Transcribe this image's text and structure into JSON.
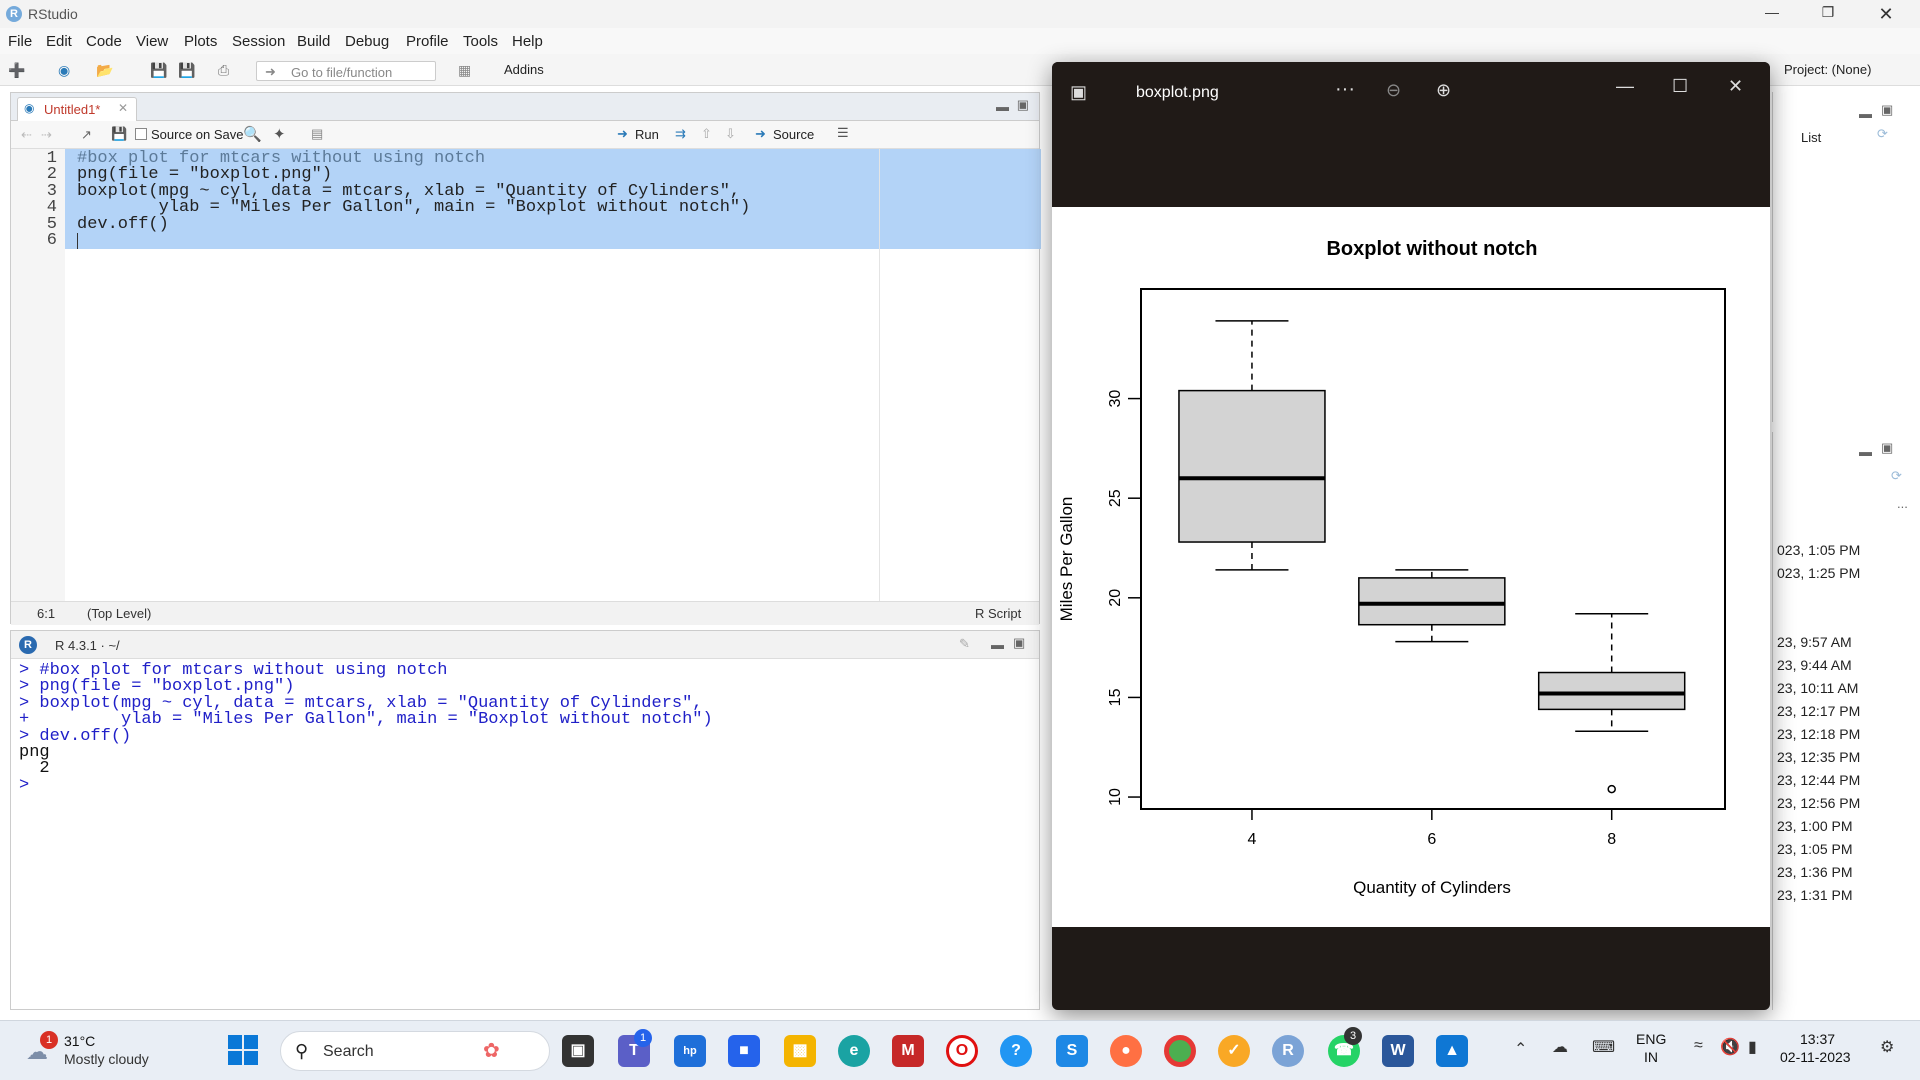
{
  "window": {
    "title": "RStudio"
  },
  "menu": [
    "File",
    "Edit",
    "Code",
    "View",
    "Plots",
    "Session",
    "Build",
    "Debug",
    "Profile",
    "Tools",
    "Help"
  ],
  "toolbar": {
    "goto_placeholder": "Go to file/function",
    "addins_label": "Addins",
    "project_label": "Project: (None)"
  },
  "editor": {
    "tab_label": "Untitled1*",
    "source_on_save": "Source on Save",
    "run_label": "Run",
    "source_label": "Source",
    "line_numbers": [
      "1",
      "2",
      "3",
      "4",
      "5",
      "6"
    ],
    "lines": [
      "#box plot for mtcars without using notch",
      "png(file = \"boxplot.png\")",
      "boxplot(mpg ~ cyl, data = mtcars, xlab = \"Quantity of Cylinders\",",
      "        ylab = \"Miles Per Gallon\", main = \"Boxplot without notch\")",
      "dev.off()",
      ""
    ],
    "status_position": "6:1",
    "status_scope": "(Top Level)",
    "status_type": "R Script"
  },
  "console": {
    "version_label": "R 4.3.1 · ~/",
    "lines": [
      {
        "text": "> #box plot for mtcars without using notch",
        "kind": "input"
      },
      {
        "text": "> png(file = \"boxplot.png\")",
        "kind": "input"
      },
      {
        "text": "> boxplot(mpg ~ cyl, data = mtcars, xlab = \"Quantity of Cylinders\",",
        "kind": "input"
      },
      {
        "text": "+         ylab = \"Miles Per Gallon\", main = \"Boxplot without notch\")",
        "kind": "input"
      },
      {
        "text": "> dev.off()",
        "kind": "input"
      },
      {
        "text": "png",
        "kind": "output"
      },
      {
        "text": "  2",
        "kind": "output"
      },
      {
        "text": ">",
        "kind": "input"
      }
    ]
  },
  "right_panel": {
    "list_label": "List",
    "ellipsis": "...",
    "history": [
      "023, 1:05 PM",
      "023, 1:25 PM",
      "23, 9:57 AM",
      "23, 9:44 AM",
      "23, 10:11 AM",
      "23, 12:17 PM",
      "23, 12:18 PM",
      "23, 12:35 PM",
      "23, 12:44 PM",
      "23, 12:56 PM",
      "23, 1:00 PM",
      "23, 1:05 PM",
      "23, 1:36 PM",
      "23, 1:31 PM"
    ]
  },
  "viewer": {
    "filename": "boxplot.png",
    "more_label": "···"
  },
  "chart_data": {
    "type": "box",
    "title": "Boxplot without notch",
    "xlabel": "Quantity of Cylinders",
    "ylabel": "Miles Per Gallon",
    "categories": [
      "4",
      "6",
      "8"
    ],
    "ylim": [
      9.4,
      35.5
    ],
    "yticks": [
      10,
      15,
      20,
      25,
      30
    ],
    "boxes": [
      {
        "category": "4",
        "whisker_low": 21.4,
        "q1": 22.8,
        "median": 26.0,
        "q3": 30.4,
        "whisker_high": 33.9,
        "outliers": []
      },
      {
        "category": "6",
        "whisker_low": 17.8,
        "q1": 18.65,
        "median": 19.7,
        "q3": 21.0,
        "whisker_high": 21.4,
        "outliers": []
      },
      {
        "category": "8",
        "whisker_low": 13.3,
        "q1": 14.4,
        "median": 15.2,
        "q3": 16.25,
        "whisker_high": 19.2,
        "outliers": [
          10.4
        ]
      }
    ],
    "box_fill": "#d3d3d3",
    "grid": false
  },
  "taskbar": {
    "weather_temp": "31°C",
    "weather_desc": "Mostly cloudy",
    "weather_badge": "1",
    "search_label": "Search",
    "teams_badge": "1",
    "whatsapp_badge": "3",
    "lang_line1": "ENG",
    "lang_line2": "IN",
    "time": "13:37",
    "date": "02-11-2023"
  }
}
